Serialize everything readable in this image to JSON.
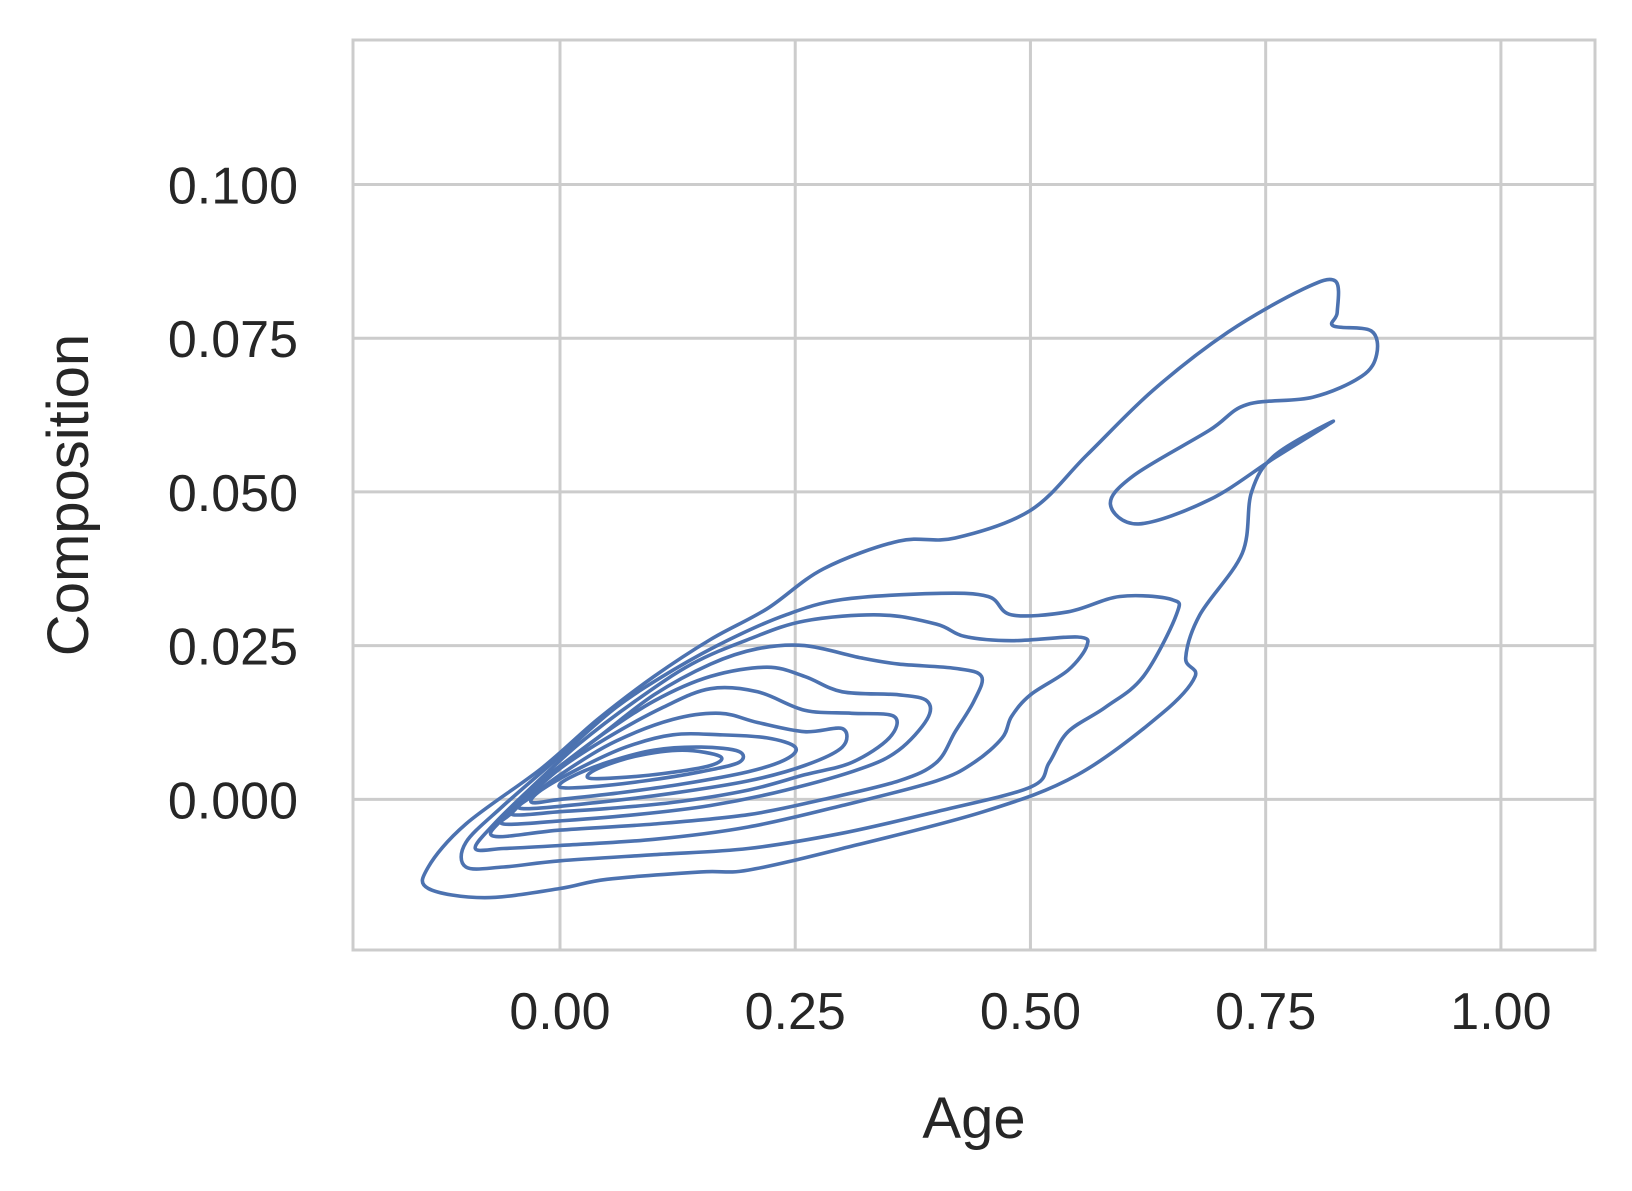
{
  "chart_data": {
    "type": "contour",
    "title": "",
    "xlabel": "Age",
    "ylabel": "Composition",
    "xlim": [
      -0.22,
      1.1
    ],
    "ylim": [
      -0.0245,
      0.1235
    ],
    "x_ticks": [
      0.0,
      0.25,
      0.5,
      0.75,
      1.0
    ],
    "x_tick_labels": [
      "0.00",
      "0.25",
      "0.50",
      "0.75",
      "1.00"
    ],
    "y_ticks": [
      0.0,
      0.025,
      0.05,
      0.075,
      0.1
    ],
    "y_tick_labels": [
      "0.000",
      "0.025",
      "0.050",
      "0.075",
      "0.100"
    ],
    "grid": true,
    "line_color": "#4c72b0",
    "grid_color": "#cccccc",
    "contour_levels": [
      {
        "level": 1,
        "paths": [
          [
            [
              -0.08,
              -0.016
            ],
            [
              -0.14,
              -0.0145
            ],
            [
              -0.14,
              -0.011
            ],
            [
              -0.1,
              -0.004
            ],
            [
              -0.02,
              0.005
            ],
            [
              0.04,
              0.013
            ],
            [
              0.1,
              0.02
            ],
            [
              0.16,
              0.026
            ],
            [
              0.22,
              0.031
            ],
            [
              0.28,
              0.0375
            ],
            [
              0.36,
              0.042
            ],
            [
              0.42,
              0.0425
            ],
            [
              0.5,
              0.047
            ],
            [
              0.56,
              0.056
            ],
            [
              0.63,
              0.0665
            ],
            [
              0.71,
              0.076
            ],
            [
              0.79,
              0.083
            ],
            [
              0.824,
              0.0843
            ],
            [
              0.826,
              0.0792
            ],
            [
              0.822,
              0.077
            ],
            [
              0.862,
              0.0762
            ],
            [
              0.868,
              0.0724
            ],
            [
              0.852,
              0.0688
            ],
            [
              0.8,
              0.0654
            ],
            [
              0.73,
              0.0642
            ],
            [
              0.69,
              0.06
            ],
            [
              0.61,
              0.0527
            ],
            [
              0.585,
              0.048
            ],
            [
              0.615,
              0.0448
            ],
            [
              0.69,
              0.0487
            ],
            [
              0.76,
              0.0556
            ],
            [
              0.822,
              0.0615
            ],
            [
              0.76,
              0.056
            ],
            [
              0.735,
              0.05
            ],
            [
              0.725,
              0.04
            ],
            [
              0.68,
              0.03
            ],
            [
              0.665,
              0.023
            ],
            [
              0.675,
              0.02
            ],
            [
              0.64,
              0.014
            ],
            [
              0.55,
              0.004
            ],
            [
              0.45,
              -0.002
            ],
            [
              0.3,
              -0.008
            ],
            [
              0.2,
              -0.0115
            ],
            [
              0.15,
              -0.0118
            ],
            [
              0.05,
              -0.013
            ],
            [
              0.0,
              -0.0145
            ],
            [
              -0.08,
              -0.016
            ]
          ]
        ]
      },
      {
        "level": 2,
        "paths": [
          [
            [
              -0.1,
              -0.011
            ],
            [
              -0.1,
              -0.007
            ],
            [
              -0.06,
              -0.001
            ],
            [
              0.0,
              0.007
            ],
            [
              0.06,
              0.015
            ],
            [
              0.12,
              0.021
            ],
            [
              0.18,
              0.026
            ],
            [
              0.24,
              0.03
            ],
            [
              0.3,
              0.0325
            ],
            [
              0.4,
              0.0335
            ],
            [
              0.455,
              0.033
            ],
            [
              0.48,
              0.03
            ],
            [
              0.54,
              0.0305
            ],
            [
              0.595,
              0.033
            ],
            [
              0.65,
              0.0325
            ],
            [
              0.655,
              0.03
            ],
            [
              0.62,
              0.02
            ],
            [
              0.58,
              0.015
            ],
            [
              0.54,
              0.011
            ],
            [
              0.52,
              0.006
            ],
            [
              0.5,
              0.002
            ],
            [
              0.4,
              -0.002
            ],
            [
              0.3,
              -0.0055
            ],
            [
              0.2,
              -0.008
            ],
            [
              0.1,
              -0.009
            ],
            [
              0.0,
              -0.01
            ],
            [
              -0.06,
              -0.011
            ],
            [
              -0.1,
              -0.011
            ]
          ]
        ]
      },
      {
        "level": 3,
        "paths": [
          [
            [
              -0.09,
              -0.008
            ],
            [
              -0.07,
              -0.004
            ],
            [
              -0.03,
              0.002
            ],
            [
              0.02,
              0.009
            ],
            [
              0.08,
              0.016
            ],
            [
              0.14,
              0.022
            ],
            [
              0.2,
              0.026
            ],
            [
              0.26,
              0.029
            ],
            [
              0.34,
              0.03
            ],
            [
              0.4,
              0.0285
            ],
            [
              0.43,
              0.0265
            ],
            [
              0.48,
              0.0258
            ],
            [
              0.55,
              0.0264
            ],
            [
              0.56,
              0.025
            ],
            [
              0.54,
              0.021
            ],
            [
              0.5,
              0.017
            ],
            [
              0.48,
              0.0135
            ],
            [
              0.47,
              0.01
            ],
            [
              0.44,
              0.006
            ],
            [
              0.4,
              0.003
            ],
            [
              0.3,
              -0.001
            ],
            [
              0.2,
              -0.0045
            ],
            [
              0.1,
              -0.0065
            ],
            [
              0.0,
              -0.0075
            ],
            [
              -0.06,
              -0.008
            ],
            [
              -0.09,
              -0.008
            ]
          ]
        ]
      },
      {
        "level": 4,
        "paths": [
          [
            [
              -0.07,
              -0.006
            ],
            [
              -0.06,
              -0.003
            ],
            [
              -0.02,
              0.003
            ],
            [
              0.04,
              0.01
            ],
            [
              0.1,
              0.017
            ],
            [
              0.16,
              0.022
            ],
            [
              0.21,
              0.0245
            ],
            [
              0.26,
              0.025
            ],
            [
              0.32,
              0.023
            ],
            [
              0.36,
              0.022
            ],
            [
              0.42,
              0.0213
            ],
            [
              0.448,
              0.02
            ],
            [
              0.44,
              0.016
            ],
            [
              0.42,
              0.011
            ],
            [
              0.4,
              0.006
            ],
            [
              0.36,
              0.003
            ],
            [
              0.28,
              0.0
            ],
            [
              0.2,
              -0.0025
            ],
            [
              0.1,
              -0.004
            ],
            [
              0.0,
              -0.005
            ],
            [
              -0.07,
              -0.006
            ]
          ]
        ]
      },
      {
        "level": 5,
        "paths": [
          [
            [
              -0.06,
              -0.004
            ],
            [
              -0.05,
              -0.002
            ],
            [
              -0.01,
              0.004
            ],
            [
              0.04,
              0.01
            ],
            [
              0.1,
              0.016
            ],
            [
              0.16,
              0.02
            ],
            [
              0.22,
              0.0215
            ],
            [
              0.26,
              0.02
            ],
            [
              0.3,
              0.0175
            ],
            [
              0.36,
              0.017
            ],
            [
              0.39,
              0.016
            ],
            [
              0.39,
              0.013
            ],
            [
              0.36,
              0.008
            ],
            [
              0.32,
              0.005
            ],
            [
              0.24,
              0.0015
            ],
            [
              0.16,
              -0.001
            ],
            [
              0.08,
              -0.0025
            ],
            [
              0.0,
              -0.0035
            ],
            [
              -0.06,
              -0.004
            ]
          ]
        ]
      },
      {
        "level": 6,
        "paths": [
          [
            [
              -0.05,
              -0.0025
            ],
            [
              -0.04,
              -0.0005
            ],
            [
              0.0,
              0.005
            ],
            [
              0.05,
              0.01
            ],
            [
              0.11,
              0.015
            ],
            [
              0.16,
              0.018
            ],
            [
              0.21,
              0.0175
            ],
            [
              0.26,
              0.0145
            ],
            [
              0.31,
              0.014
            ],
            [
              0.355,
              0.0135
            ],
            [
              0.35,
              0.01
            ],
            [
              0.31,
              0.006
            ],
            [
              0.26,
              0.004
            ],
            [
              0.2,
              0.0015
            ],
            [
              0.12,
              -0.0005
            ],
            [
              0.05,
              -0.0015
            ],
            [
              0.0,
              -0.002
            ],
            [
              -0.05,
              -0.0025
            ]
          ]
        ]
      },
      {
        "level": 7,
        "paths": [
          [
            [
              -0.04,
              -0.0015
            ],
            [
              -0.03,
              0.0005
            ],
            [
              0.01,
              0.005
            ],
            [
              0.06,
              0.0095
            ],
            [
              0.12,
              0.013
            ],
            [
              0.17,
              0.014
            ],
            [
              0.21,
              0.0125
            ],
            [
              0.26,
              0.011
            ],
            [
              0.3,
              0.0115
            ],
            [
              0.3,
              0.0085
            ],
            [
              0.26,
              0.0055
            ],
            [
              0.2,
              0.003
            ],
            [
              0.12,
              0.001
            ],
            [
              0.04,
              -0.0005
            ],
            [
              -0.04,
              -0.0015
            ]
          ]
        ]
      },
      {
        "level": 8,
        "paths": [
          [
            [
              -0.03,
              -0.0005
            ],
            [
              -0.02,
              0.0015
            ],
            [
              0.02,
              0.005
            ],
            [
              0.07,
              0.0085
            ],
            [
              0.12,
              0.0105
            ],
            [
              0.17,
              0.0105
            ],
            [
              0.22,
              0.01
            ],
            [
              0.25,
              0.0085
            ],
            [
              0.24,
              0.0065
            ],
            [
              0.2,
              0.0045
            ],
            [
              0.13,
              0.0025
            ],
            [
              0.06,
              0.001
            ],
            [
              0.0,
              0.0
            ],
            [
              -0.03,
              -0.0005
            ]
          ]
        ]
      },
      {
        "level": 9,
        "paths": [
          [
            [
              0.0,
              0.002
            ],
            [
              0.01,
              0.0035
            ],
            [
              0.05,
              0.006
            ],
            [
              0.1,
              0.008
            ],
            [
              0.15,
              0.0085
            ],
            [
              0.19,
              0.0078
            ],
            [
              0.19,
              0.006
            ],
            [
              0.15,
              0.0045
            ],
            [
              0.09,
              0.003
            ],
            [
              0.03,
              0.002
            ],
            [
              0.0,
              0.002
            ]
          ]
        ]
      },
      {
        "level": 10,
        "paths": [
          [
            [
              0.03,
              0.0035
            ],
            [
              0.04,
              0.005
            ],
            [
              0.08,
              0.007
            ],
            [
              0.13,
              0.008
            ],
            [
              0.17,
              0.007
            ],
            [
              0.16,
              0.0055
            ],
            [
              0.11,
              0.0042
            ],
            [
              0.06,
              0.0035
            ],
            [
              0.03,
              0.0035
            ]
          ]
        ]
      }
    ]
  }
}
